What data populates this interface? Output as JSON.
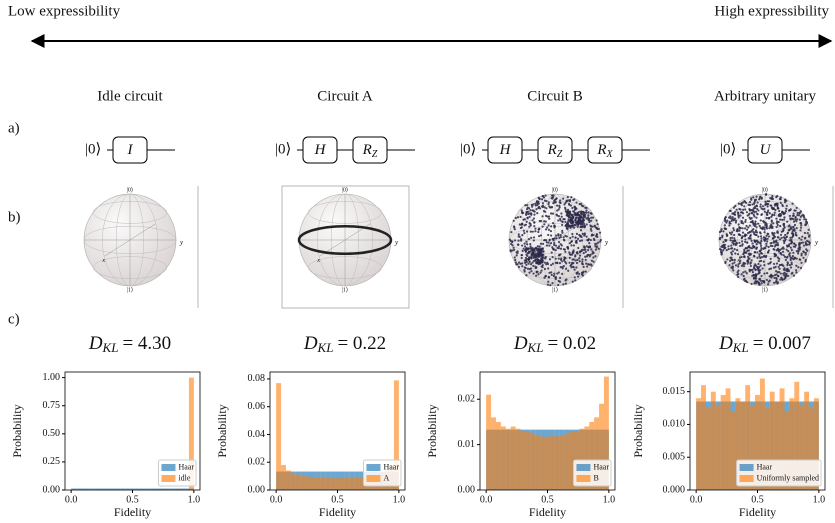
{
  "header": {
    "left": "Low expressibility",
    "right": "High expressibility"
  },
  "row_labels": [
    "a)",
    "b)",
    "c)"
  ],
  "circuit_input": "|0⟩",
  "bloch_labels": {
    "zero": "|0⟩",
    "one": "|1⟩",
    "x": "x",
    "y": "y"
  },
  "dkl_symbol": "D",
  "dkl_subscript": "KL",
  "columns": [
    {
      "title": "Idle circuit",
      "gates": [
        {
          "name": "I"
        }
      ],
      "dkl": "= 4.30"
    },
    {
      "title": "Circuit A",
      "gates": [
        {
          "name": "H"
        },
        {
          "name": "R",
          "sub": "Z"
        }
      ],
      "dkl": "= 0.22"
    },
    {
      "title": "Circuit B",
      "gates": [
        {
          "name": "H"
        },
        {
          "name": "R",
          "sub": "Z"
        },
        {
          "name": "R",
          "sub": "X"
        }
      ],
      "dkl": "= 0.02"
    },
    {
      "title": "Arbitrary unitary",
      "gates": [
        {
          "name": "U"
        }
      ],
      "dkl": "= 0.007"
    }
  ],
  "chart_data": [
    {
      "type": "histogram",
      "xlabel": "Fidelity",
      "ylabel": "Probability",
      "legend": "lower right",
      "bins": [
        0,
        0.04,
        0.08,
        0.12,
        0.16,
        0.2,
        0.24,
        0.28,
        0.32,
        0.36,
        0.4,
        0.44,
        0.48,
        0.52,
        0.56,
        0.6,
        0.64,
        0.68,
        0.72,
        0.76,
        0.8,
        0.84,
        0.88,
        0.92,
        0.96,
        1.0
      ],
      "xlim": [
        -0.05,
        1.05
      ],
      "xticks": [
        {
          "value": 0,
          "label": "0.0"
        },
        {
          "value": 0.5,
          "label": "0.5"
        },
        {
          "value": 1,
          "label": "1.0"
        }
      ],
      "ylim": [
        0,
        1.05
      ],
      "yticks": [
        {
          "value": 0,
          "label": "0.00"
        },
        {
          "value": 0.25,
          "label": "0.25"
        },
        {
          "value": 0.5,
          "label": "0.50"
        },
        {
          "value": 0.75,
          "label": "0.75"
        },
        {
          "value": 1,
          "label": "1.00"
        }
      ],
      "series": [
        {
          "name": "Haar",
          "color": "#1f77b4",
          "values": [
            0.0133,
            0.0133,
            0.0133,
            0.0133,
            0.0133,
            0.0133,
            0.0133,
            0.0133,
            0.0133,
            0.0133,
            0.0133,
            0.0133,
            0.0133,
            0.0133,
            0.0133,
            0.0133,
            0.0133,
            0.0133,
            0.0133,
            0.0133,
            0.0133,
            0.0133,
            0.0133,
            0.0133,
            0.0133
          ]
        },
        {
          "name": "idle",
          "color": "#ff7f0e",
          "values": [
            0,
            0,
            0,
            0,
            0,
            0,
            0,
            0,
            0,
            0,
            0,
            0,
            0,
            0,
            0,
            0,
            0,
            0,
            0,
            0,
            0,
            0,
            0,
            0,
            1.0
          ]
        }
      ]
    },
    {
      "type": "histogram",
      "xlabel": "Fidelity",
      "ylabel": "Probability",
      "legend": "lower right",
      "bins": [
        0,
        0.04,
        0.08,
        0.12,
        0.16,
        0.2,
        0.24,
        0.28,
        0.32,
        0.36,
        0.4,
        0.44,
        0.48,
        0.52,
        0.56,
        0.6,
        0.64,
        0.68,
        0.72,
        0.76,
        0.8,
        0.84,
        0.88,
        0.92,
        0.96,
        1.0
      ],
      "xlim": [
        -0.05,
        1.05
      ],
      "xticks": [
        {
          "value": 0,
          "label": "0.0"
        },
        {
          "value": 0.5,
          "label": "0.5"
        },
        {
          "value": 1,
          "label": "1.0"
        }
      ],
      "ylim": [
        0,
        0.085
      ],
      "yticks": [
        {
          "value": 0,
          "label": "0.00"
        },
        {
          "value": 0.02,
          "label": "0.02"
        },
        {
          "value": 0.04,
          "label": "0.04"
        },
        {
          "value": 0.06,
          "label": "0.06"
        },
        {
          "value": 0.08,
          "label": "0.08"
        }
      ],
      "series": [
        {
          "name": "Haar",
          "color": "#1f77b4",
          "values": [
            0.0133,
            0.0133,
            0.0133,
            0.0133,
            0.0133,
            0.0133,
            0.0133,
            0.0133,
            0.0133,
            0.0133,
            0.0133,
            0.0133,
            0.0133,
            0.0133,
            0.0133,
            0.0133,
            0.0133,
            0.0133,
            0.0133,
            0.0133,
            0.0133,
            0.0133,
            0.0133,
            0.0133,
            0.0133
          ]
        },
        {
          "name": "A",
          "color": "#ff7f0e",
          "values": [
            0.077,
            0.018,
            0.014,
            0.012,
            0.011,
            0.01,
            0.0097,
            0.0093,
            0.009,
            0.0087,
            0.0086,
            0.0085,
            0.0085,
            0.0085,
            0.0086,
            0.0087,
            0.009,
            0.0093,
            0.0097,
            0.0103,
            0.011,
            0.0122,
            0.0141,
            0.0179,
            0.079
          ]
        }
      ]
    },
    {
      "type": "histogram",
      "xlabel": "Fidelity",
      "ylabel": "Probability",
      "legend": "lower right",
      "bins": [
        0,
        0.04,
        0.08,
        0.12,
        0.16,
        0.2,
        0.24,
        0.28,
        0.32,
        0.36,
        0.4,
        0.44,
        0.48,
        0.52,
        0.56,
        0.6,
        0.64,
        0.68,
        0.72,
        0.76,
        0.8,
        0.84,
        0.88,
        0.92,
        0.96,
        1.0
      ],
      "xlim": [
        -0.05,
        1.05
      ],
      "xticks": [
        {
          "value": 0,
          "label": "0.0"
        },
        {
          "value": 0.5,
          "label": "0.5"
        },
        {
          "value": 1,
          "label": "1.0"
        }
      ],
      "ylim": [
        0,
        0.026
      ],
      "yticks": [
        {
          "value": 0,
          "label": "0.00"
        },
        {
          "value": 0.01,
          "label": "0.01"
        },
        {
          "value": 0.02,
          "label": "0.02"
        }
      ],
      "series": [
        {
          "name": "Haar",
          "color": "#1f77b4",
          "values": [
            0.0133,
            0.0133,
            0.0133,
            0.0133,
            0.0133,
            0.0133,
            0.0133,
            0.0133,
            0.0133,
            0.0133,
            0.0133,
            0.0133,
            0.0133,
            0.0133,
            0.0133,
            0.0133,
            0.0133,
            0.0133,
            0.0133,
            0.0133,
            0.0133,
            0.0133,
            0.0133,
            0.0133,
            0.0133
          ]
        },
        {
          "name": "B",
          "color": "#ff7f0e",
          "values": [
            0.021,
            0.016,
            0.015,
            0.014,
            0.0135,
            0.014,
            0.0135,
            0.013,
            0.0128,
            0.0125,
            0.012,
            0.0118,
            0.0115,
            0.012,
            0.0118,
            0.012,
            0.0125,
            0.013,
            0.0128,
            0.0135,
            0.014,
            0.015,
            0.016,
            0.019,
            0.025
          ]
        }
      ]
    },
    {
      "type": "histogram",
      "xlabel": "Fidelity",
      "ylabel": "Probability",
      "legend": "lower right",
      "bins": [
        0,
        0.04,
        0.08,
        0.12,
        0.16,
        0.2,
        0.24,
        0.28,
        0.32,
        0.36,
        0.4,
        0.44,
        0.48,
        0.52,
        0.56,
        0.6,
        0.64,
        0.68,
        0.72,
        0.76,
        0.8,
        0.84,
        0.88,
        0.92,
        0.96,
        1.0
      ],
      "xlim": [
        -0.05,
        1.05
      ],
      "xticks": [
        {
          "value": 0,
          "label": "0.0"
        },
        {
          "value": 0.5,
          "label": "0.5"
        },
        {
          "value": 1,
          "label": "1.0"
        }
      ],
      "ylim": [
        0,
        0.018
      ],
      "yticks": [
        {
          "value": 0,
          "label": "0.000"
        },
        {
          "value": 0.005,
          "label": "0.005"
        },
        {
          "value": 0.01,
          "label": "0.010"
        },
        {
          "value": 0.015,
          "label": "0.015"
        }
      ],
      "series": [
        {
          "name": "Haar",
          "color": "#1f77b4",
          "values": [
            0.0135,
            0.0135,
            0.0135,
            0.0135,
            0.0135,
            0.0135,
            0.0135,
            0.0135,
            0.0135,
            0.0135,
            0.0135,
            0.0135,
            0.0135,
            0.0135,
            0.0135,
            0.0135,
            0.0135,
            0.0135,
            0.0135,
            0.0135,
            0.0135,
            0.0135,
            0.0135,
            0.0135,
            0.0135
          ]
        },
        {
          "name": "Uniformly sampled",
          "color": "#ff7f0e",
          "values": [
            0.014,
            0.016,
            0.0125,
            0.015,
            0.013,
            0.0145,
            0.0155,
            0.012,
            0.014,
            0.0135,
            0.016,
            0.013,
            0.0145,
            0.017,
            0.0125,
            0.015,
            0.0135,
            0.0155,
            0.012,
            0.014,
            0.0165,
            0.013,
            0.015,
            0.0125,
            0.014
          ]
        }
      ]
    }
  ]
}
